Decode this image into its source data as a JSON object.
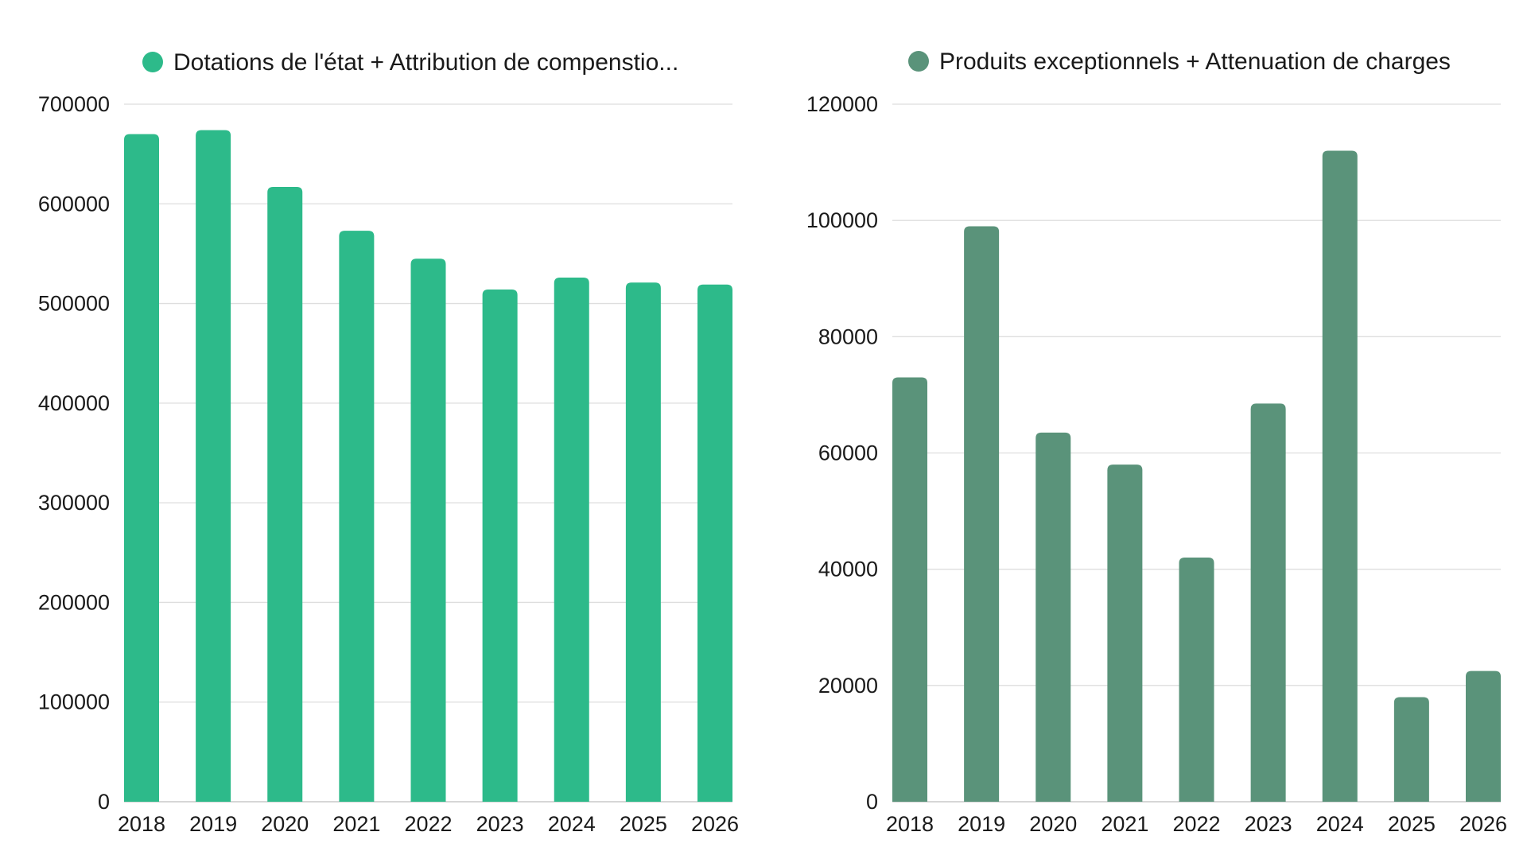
{
  "chart_data": [
    {
      "type": "bar",
      "title": "",
      "legend": {
        "label": "Dotations de l'état + Attribution de compenstio...",
        "position": "top"
      },
      "xlabel": "",
      "ylabel": "",
      "categories": [
        "2018",
        "2019",
        "2020",
        "2021",
        "2022",
        "2023",
        "2024",
        "2025",
        "2026"
      ],
      "series": [
        {
          "name": "Dotations de l'état + Attribution de compenstio...",
          "color": "#2dba8a",
          "values": [
            670000,
            674000,
            617000,
            573000,
            545000,
            514000,
            526000,
            521000,
            519000
          ]
        }
      ],
      "ylim": [
        0,
        700000
      ],
      "yticks": [
        "0",
        "100000",
        "200000",
        "300000",
        "400000",
        "500000",
        "600000",
        "700000"
      ],
      "grid": true
    },
    {
      "type": "bar",
      "title": "",
      "legend": {
        "label": "Produits exceptionnels + Attenuation de charges",
        "position": "top"
      },
      "xlabel": "",
      "ylabel": "",
      "categories": [
        "2018",
        "2019",
        "2020",
        "2021",
        "2022",
        "2023",
        "2024",
        "2025",
        "2026"
      ],
      "series": [
        {
          "name": "Produits exceptionnels + Attenuation de charges",
          "color": "#5a937a",
          "values": [
            73000,
            99000,
            63500,
            58000,
            42000,
            68500,
            112000,
            18000,
            22500
          ]
        }
      ],
      "ylim": [
        0,
        120000
      ],
      "yticks": [
        "0",
        "20000",
        "40000",
        "60000",
        "80000",
        "100000",
        "120000"
      ],
      "grid": true
    }
  ]
}
